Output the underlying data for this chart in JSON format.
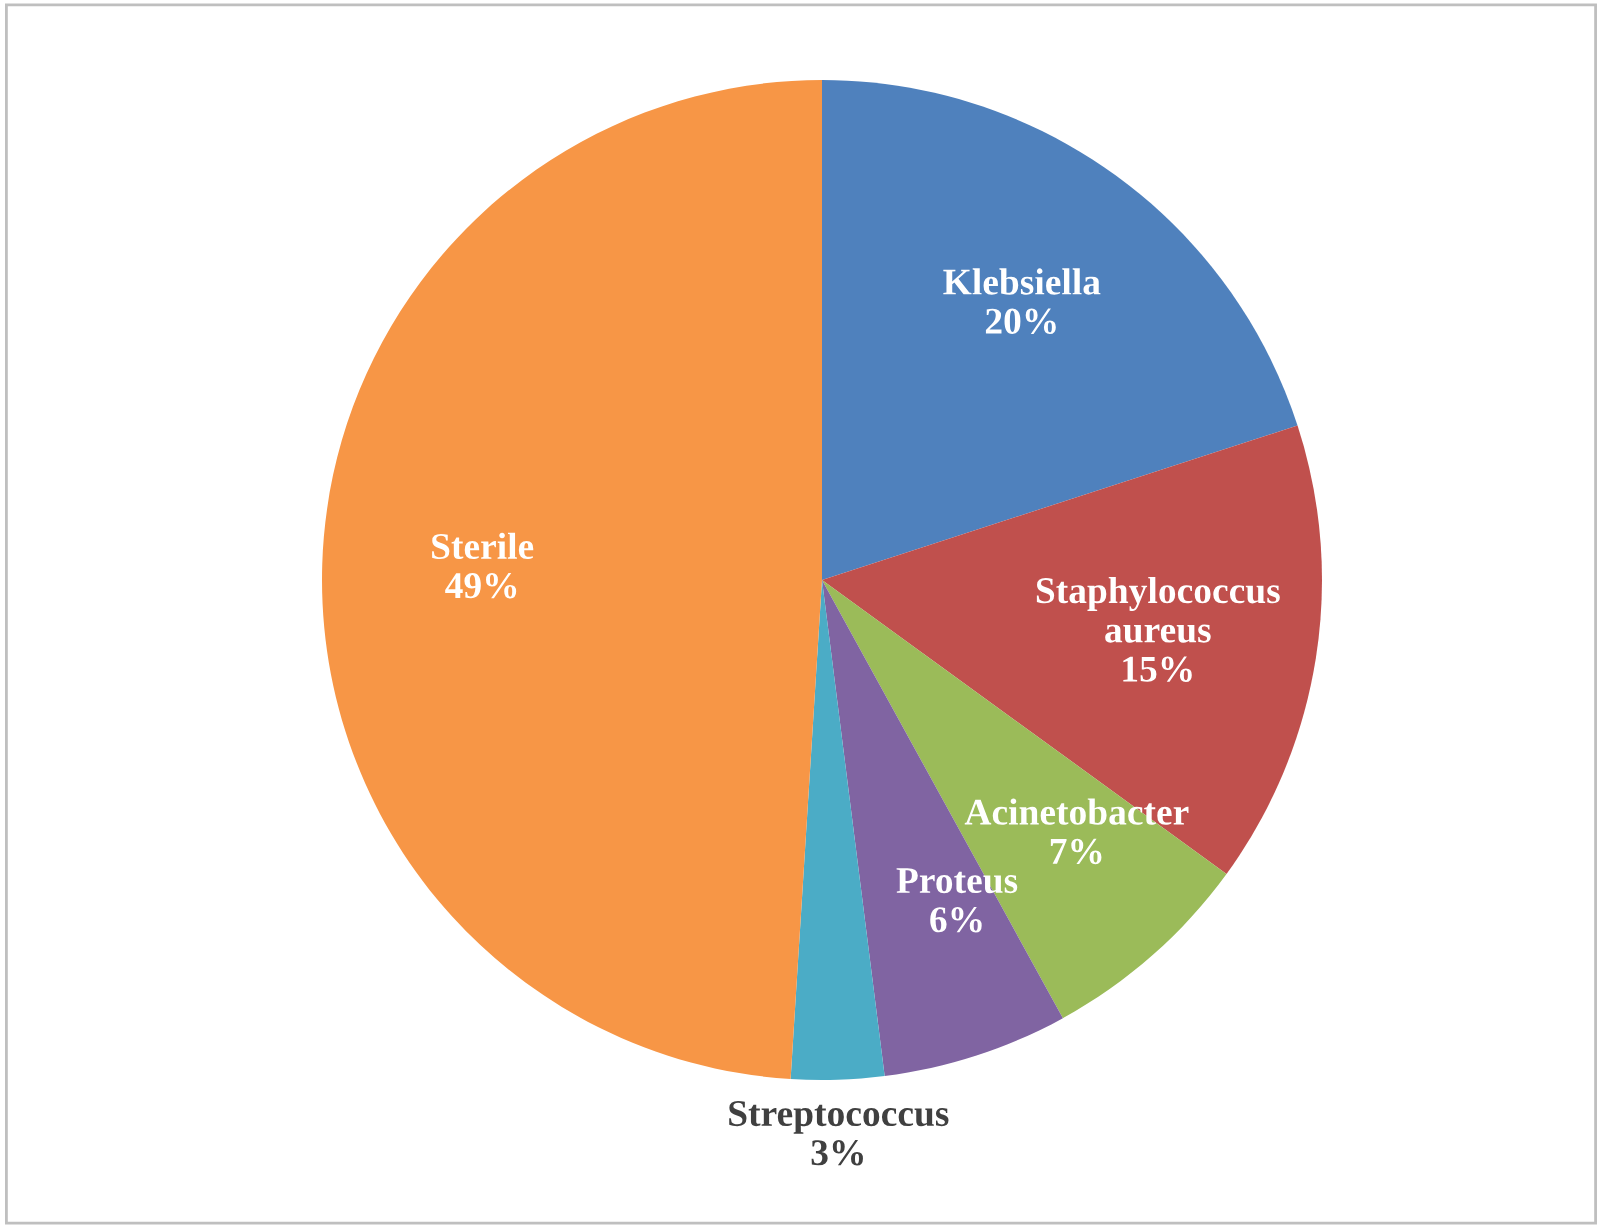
{
  "chart_data": {
    "type": "pie",
    "categories": [
      "Klebsiella",
      "Staphylococcus\naureus",
      "Acinetobacter",
      "Proteus",
      "Streptococcus",
      "Sterile"
    ],
    "values": [
      20,
      15,
      7,
      6,
      3,
      49
    ],
    "value_labels": [
      "20%",
      "15%",
      "7%",
      "6%",
      "3%",
      "49%"
    ],
    "colors": [
      "#4f81bd",
      "#c0504d",
      "#9bbb59",
      "#8064a2",
      "#4bacc6",
      "#f79646"
    ],
    "legend": false
  }
}
